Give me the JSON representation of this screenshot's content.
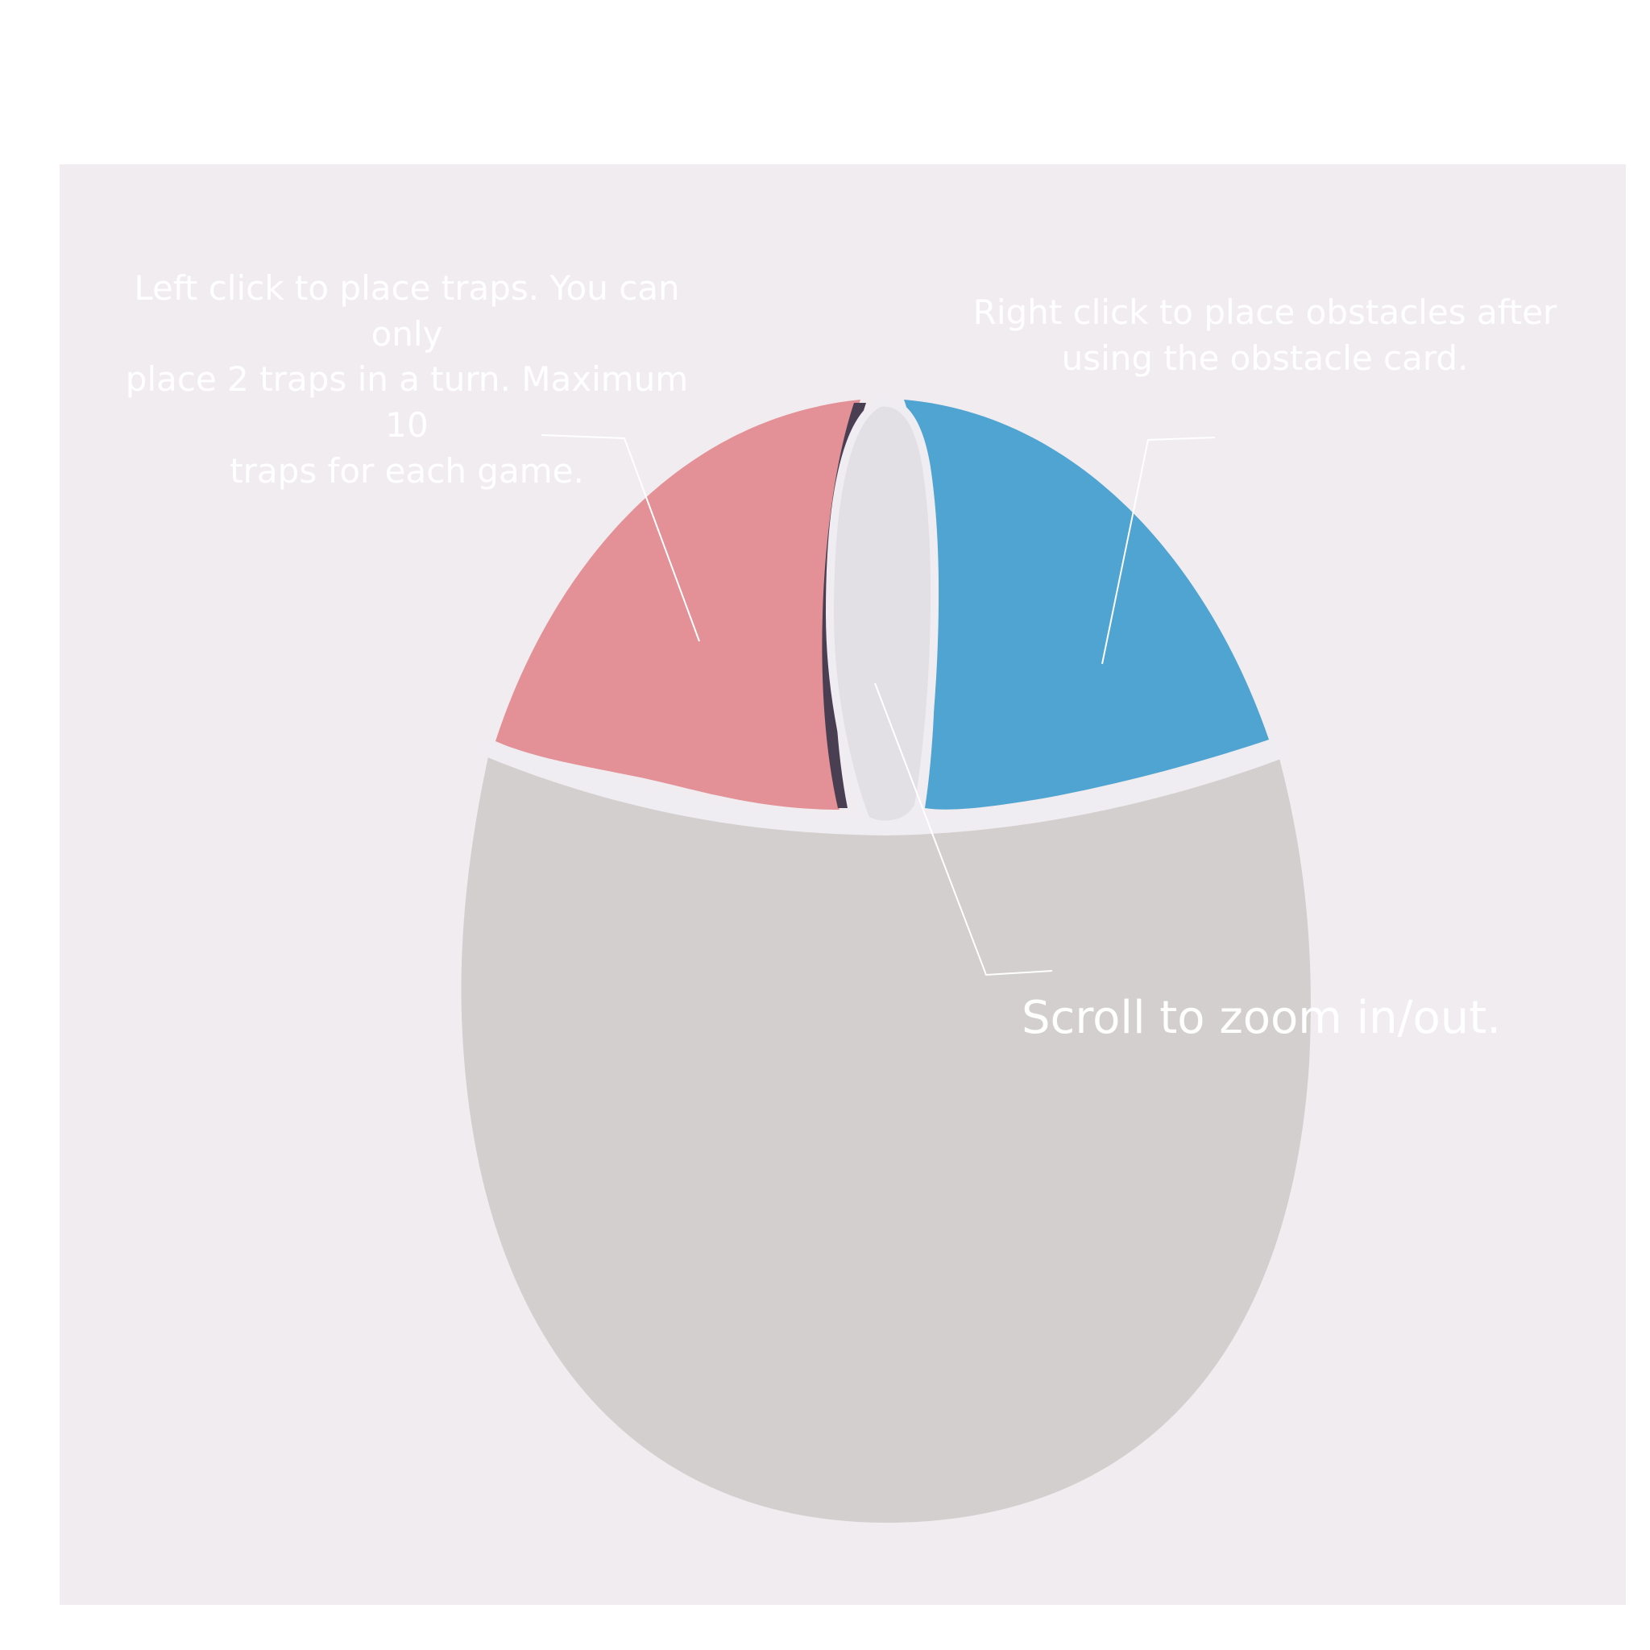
{
  "colors": {
    "page_background": "#ffffff",
    "panel_background": "#f1ecf0",
    "mouse_body": "#d3cfce",
    "left_button": "#e39196",
    "right_button": "#4fa4d1",
    "scroll_wheel": "#e2e0e5",
    "divider": "#f0edf2",
    "callout_line": "#ffffff",
    "caption_text": "#ffffff"
  },
  "captions": {
    "left_click": "Left click to place traps. You can only\nplace 2 traps in a turn. Maximum 10\ntraps for each game.",
    "right_click": "Right click to place obstacles after\nusing the obstacle card.",
    "scroll": "Scroll to zoom in/out."
  },
  "icons": {
    "mouse": "computer-mouse-icon"
  }
}
